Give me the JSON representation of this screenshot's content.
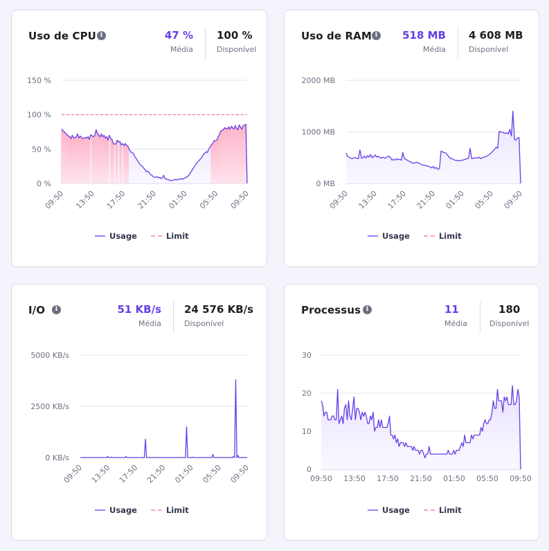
{
  "colors": {
    "accent": "#673de6",
    "usage_line": "#673de6",
    "usage_fill": "#ebe4ff",
    "limit_line": "#fc5185",
    "over_fill": "#ffb3c6",
    "grid": "#e3e3ea",
    "text_muted": "#6d7081"
  },
  "legend": {
    "usage": "Usage",
    "limit": "Limit"
  },
  "cards": [
    {
      "id": "cpu",
      "title": "Uso de CPU",
      "icon": "info-icon",
      "average": {
        "value": "47 %",
        "label": "Média"
      },
      "available": {
        "value": "100 %",
        "label": "Disponível"
      }
    },
    {
      "id": "ram",
      "title": "Uso de RAM",
      "icon": "info-icon",
      "average": {
        "value": "518 MB",
        "label": "Média"
      },
      "available": {
        "value": "4 608 MB",
        "label": "Disponível"
      }
    },
    {
      "id": "io",
      "title": "I/O",
      "icon": "info-icon",
      "average": {
        "value": "51 KB/s",
        "label": "Média"
      },
      "available": {
        "value": "24 576 KB/s",
        "label": "Disponível"
      }
    },
    {
      "id": "proc",
      "title": "Processus",
      "icon": "info-icon",
      "average": {
        "value": "11",
        "label": "Média"
      },
      "available": {
        "value": "180",
        "label": "Disponível"
      }
    }
  ],
  "chart_data": [
    {
      "id": "cpu",
      "type": "area",
      "title": "Uso de CPU",
      "xlabel": "",
      "ylabel": "",
      "x_ticks": [
        "09:50",
        "13:50",
        "17:50",
        "21:50",
        "01:50",
        "05:50",
        "09:50"
      ],
      "y_ticks": [
        "0 %",
        "50 %",
        "100 %",
        "150 %"
      ],
      "y_tick_values": [
        0,
        50,
        100,
        150
      ],
      "ylim": [
        0,
        150
      ],
      "x_tick_rotation": "rotated",
      "limit": 100,
      "grid": true,
      "legend": "bottom-center",
      "series": [
        {
          "name": "Usage",
          "values": [
            79,
            77,
            75,
            73,
            71,
            69,
            68,
            65,
            70,
            67,
            66,
            68,
            72,
            66,
            69,
            67,
            65,
            66,
            67,
            66,
            68,
            64,
            71,
            69,
            68,
            70,
            78,
            73,
            70,
            68,
            72,
            68,
            70,
            66,
            68,
            63,
            70,
            66,
            64,
            58,
            57,
            58,
            63,
            60,
            61,
            56,
            58,
            55,
            58,
            56,
            54,
            50,
            46,
            45,
            44,
            40,
            37,
            34,
            31,
            28,
            26,
            25,
            22,
            20,
            17,
            18,
            16,
            13,
            12,
            10,
            9,
            9,
            10,
            8,
            9,
            7,
            8,
            12,
            7,
            6,
            6,
            5,
            4,
            4,
            5,
            5,
            6,
            5,
            6,
            6,
            7,
            6,
            7,
            8,
            9,
            10,
            12,
            15,
            18,
            21,
            24,
            27,
            30,
            32,
            34,
            36,
            39,
            42,
            44,
            46,
            45,
            50,
            53,
            56,
            58,
            62,
            62,
            63,
            67,
            71,
            76,
            77,
            78,
            81,
            80,
            79,
            82,
            79,
            83,
            81,
            79,
            84,
            80,
            78,
            85,
            82,
            79,
            84,
            85,
            86,
            0
          ]
        }
      ]
    },
    {
      "id": "ram",
      "type": "area",
      "title": "Uso de RAM",
      "xlabel": "",
      "ylabel": "",
      "x_ticks": [
        "09:50",
        "13:50",
        "17:50",
        "21:50",
        "01:50",
        "05:50",
        "09:50"
      ],
      "y_ticks": [
        "0 MB",
        "1000 MB",
        "2000 MB"
      ],
      "y_tick_values": [
        0,
        1000,
        2000
      ],
      "ylim": [
        0,
        2000
      ],
      "x_tick_rotation": "rotated",
      "grid": true,
      "legend": "bottom-center",
      "series": [
        {
          "name": "Usage",
          "values": [
            590,
            520,
            510,
            490,
            480,
            500,
            495,
            490,
            480,
            650,
            490,
            500,
            530,
            490,
            540,
            510,
            560,
            500,
            520,
            550,
            510,
            530,
            500,
            490,
            510,
            490,
            500,
            520,
            530,
            500,
            450,
            470,
            450,
            480,
            460,
            470,
            450,
            600,
            480,
            470,
            450,
            430,
            420,
            400,
            390,
            400,
            410,
            400,
            390,
            370,
            360,
            350,
            350,
            340,
            330,
            320,
            300,
            330,
            290,
            310,
            270,
            290,
            630,
            610,
            600,
            590,
            560,
            520,
            490,
            480,
            470,
            450,
            450,
            440,
            440,
            450,
            450,
            460,
            470,
            480,
            490,
            680,
            480,
            490,
            490,
            500,
            490,
            510,
            480,
            500,
            510,
            520,
            530,
            550,
            570,
            600,
            630,
            660,
            700,
            680,
            1010,
            1000,
            990,
            980,
            970,
            980,
            960,
            1050,
            920,
            1400,
            850,
            840,
            880,
            890,
            0
          ]
        }
      ]
    },
    {
      "id": "io",
      "type": "area",
      "title": "I/O",
      "xlabel": "",
      "ylabel": "",
      "x_ticks": [
        "09:50",
        "13:50",
        "17:50",
        "21:50",
        "01:50",
        "05:50",
        "09:50"
      ],
      "y_ticks": [
        "0 KB/s",
        "2500 KB/s",
        "5000 KB/s"
      ],
      "y_tick_values": [
        0,
        2500,
        5000
      ],
      "ylim": [
        0,
        5000
      ],
      "x_tick_rotation": "rotated",
      "grid": true,
      "legend": "bottom-center",
      "series": [
        {
          "name": "Usage",
          "values": [
            0,
            0,
            0,
            0,
            0,
            0,
            0,
            0,
            0,
            0,
            0,
            0,
            0,
            0,
            0,
            0,
            0,
            0,
            0,
            0,
            0,
            0,
            0,
            0,
            50,
            0,
            0,
            20,
            0,
            0,
            0,
            0,
            0,
            0,
            0,
            0,
            0,
            0,
            0,
            0,
            50,
            0,
            0,
            0,
            0,
            0,
            0,
            0,
            0,
            0,
            0,
            0,
            0,
            0,
            0,
            0,
            0,
            900,
            0,
            0,
            0,
            0,
            0,
            0,
            0,
            0,
            0,
            0,
            0,
            0,
            0,
            0,
            0,
            0,
            0,
            0,
            0,
            0,
            0,
            0,
            0,
            0,
            0,
            0,
            0,
            0,
            0,
            0,
            0,
            0,
            0,
            0,
            0,
            1500,
            0,
            0,
            0,
            0,
            20,
            0,
            0,
            0,
            0,
            0,
            0,
            0,
            0,
            0,
            0,
            0,
            0,
            0,
            0,
            0,
            0,
            0,
            150,
            0,
            0,
            0,
            0,
            0,
            0,
            0,
            0,
            0,
            0,
            0,
            0,
            0,
            0,
            0,
            0,
            0,
            50,
            0,
            3800,
            0,
            100,
            0,
            0,
            0,
            0,
            0,
            0,
            0,
            0
          ]
        }
      ]
    },
    {
      "id": "proc",
      "type": "area",
      "title": "Processus",
      "xlabel": "",
      "ylabel": "",
      "x_ticks": [
        "09:50",
        "13:50",
        "17:50",
        "21:50",
        "01:50",
        "05:50",
        "09:50"
      ],
      "y_ticks": [
        "0",
        "10",
        "20",
        "30"
      ],
      "y_tick_values": [
        0,
        10,
        20,
        30
      ],
      "ylim": [
        0,
        30
      ],
      "x_tick_rotation": "horizontal",
      "grid": true,
      "legend": "bottom-center",
      "series": [
        {
          "name": "Usage",
          "values": [
            18,
            17,
            14,
            15,
            15,
            13,
            13,
            13,
            14,
            14,
            13,
            13,
            21,
            12,
            13,
            14,
            12,
            16,
            17,
            13,
            18,
            14,
            13,
            16,
            19,
            13,
            16,
            16,
            15,
            13,
            15,
            14,
            15,
            14,
            12,
            12,
            14,
            13,
            15,
            10,
            11,
            11,
            13,
            11,
            13,
            11,
            11,
            11,
            11,
            12,
            14,
            9,
            9,
            8,
            9,
            7,
            8,
            6,
            7,
            7,
            7,
            6,
            7,
            6,
            6,
            6,
            6,
            5,
            6,
            5,
            5,
            5,
            4,
            5,
            5,
            4,
            3,
            4,
            4,
            6,
            4,
            4,
            4,
            4,
            4,
            4,
            4,
            4,
            4,
            4,
            4,
            4,
            4,
            5,
            4,
            4,
            4,
            5,
            4,
            5,
            5,
            5,
            6,
            7,
            6,
            9,
            7,
            7,
            7,
            7,
            9,
            8,
            9,
            9,
            9,
            9,
            9,
            11,
            10,
            12,
            13,
            12,
            12,
            13,
            13,
            15,
            18,
            16,
            16,
            21,
            18,
            18,
            18,
            15,
            19,
            18,
            19,
            17,
            17,
            17,
            22,
            17,
            17,
            18,
            21,
            19,
            0
          ]
        }
      ]
    }
  ]
}
